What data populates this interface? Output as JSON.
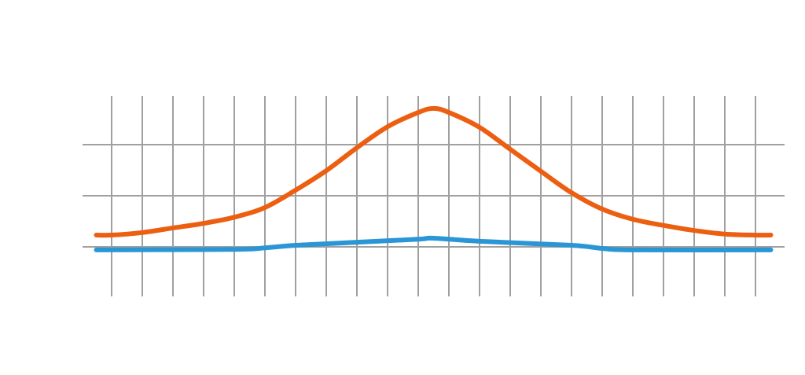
{
  "chart_data": {
    "type": "line",
    "title": "",
    "xlabel": "",
    "ylabel": "",
    "xlim": [
      -0.5,
      21.5
    ],
    "ylim": [
      -1,
      3
    ],
    "x_gridlines": [
      0,
      1,
      2,
      3,
      4,
      5,
      6,
      7,
      8,
      9,
      10,
      11,
      12,
      13,
      14,
      15,
      16,
      17,
      18,
      19,
      20,
      21
    ],
    "y_gridlines": [
      0,
      1,
      2
    ],
    "grid": true,
    "legend": "none",
    "grid_color": "#a0a0a0",
    "series": [
      {
        "color": "#ec5f11",
        "x": [
          -0.5,
          0,
          1,
          2,
          3,
          4,
          5,
          6,
          7,
          8,
          9,
          10,
          10.5,
          11,
          12,
          13,
          14,
          15,
          16,
          17,
          18,
          19,
          20,
          21,
          21.5
        ],
        "y": [
          0.23,
          0.23,
          0.28,
          0.37,
          0.46,
          0.58,
          0.77,
          1.11,
          1.49,
          1.94,
          2.35,
          2.63,
          2.71,
          2.63,
          2.34,
          1.91,
          1.48,
          1.06,
          0.74,
          0.54,
          0.42,
          0.32,
          0.25,
          0.23,
          0.23
        ]
      },
      {
        "color": "#2b96d6",
        "x": [
          -0.5,
          4,
          5,
          6,
          8,
          10,
          10.5,
          12,
          15,
          16,
          17,
          21.5
        ],
        "y": [
          -0.06,
          -0.05,
          -0.02,
          0.03,
          0.09,
          0.15,
          0.17,
          0.11,
          0.03,
          -0.03,
          -0.06,
          -0.06
        ]
      }
    ]
  }
}
